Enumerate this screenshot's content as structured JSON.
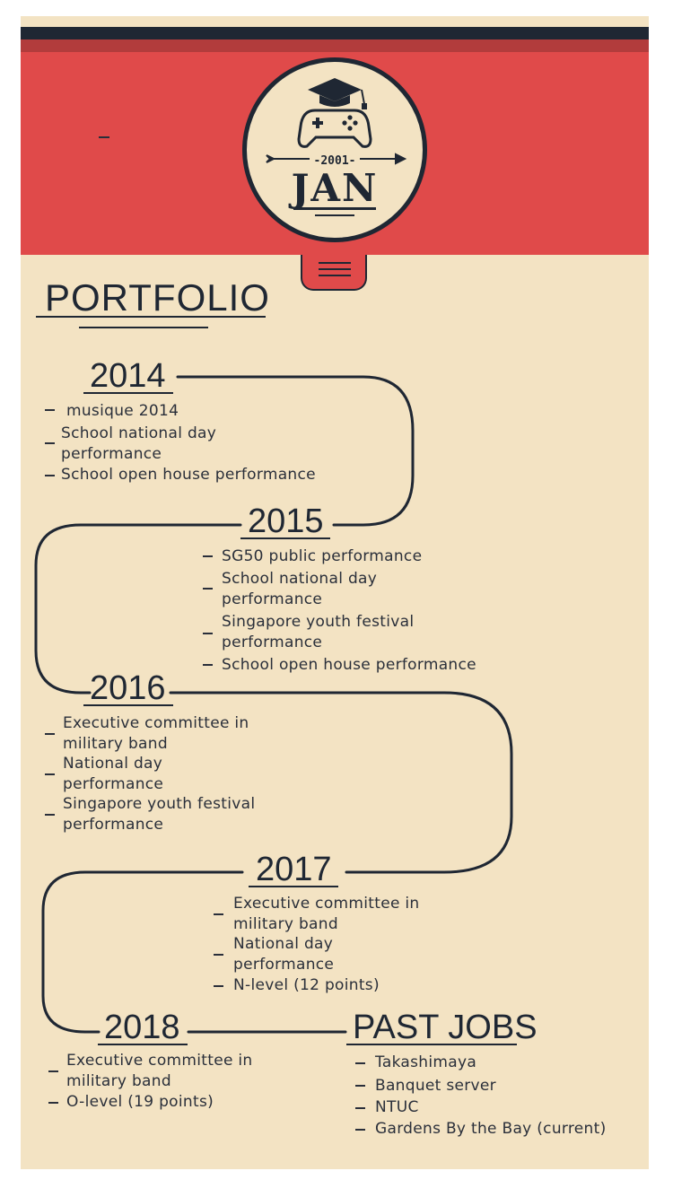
{
  "badge": {
    "year": "-2001-",
    "month": "JAN"
  },
  "portfolio_title": "PORTFOLIO",
  "years": [
    {
      "year": "2014",
      "items": [
        "musique 2014",
        "School national day performance",
        "School open house performance"
      ]
    },
    {
      "year": "2015",
      "items": [
        "SG50 public performance",
        "School national day performance",
        "Singapore youth festival performance",
        "School open house performance"
      ]
    },
    {
      "year": "2016",
      "items": [
        "Executive committee in military band",
        "National day performance",
        "Singapore youth festival performance"
      ]
    },
    {
      "year": "2017",
      "items": [
        "Executive committee in military band",
        "National day performance",
        "N-level (12 points)"
      ]
    },
    {
      "year": "2018",
      "items": [
        "Executive committee in military band",
        "O-level (19 points)"
      ]
    }
  ],
  "past_jobs": {
    "title": "PAST JOBS",
    "items": [
      "Takashimaya",
      "Banquet server",
      "NTUC",
      "Gardens By the Bay (current)"
    ]
  },
  "colors": {
    "red": "#e04a4a",
    "navy": "#1f2733",
    "cream": "#f3e3c3"
  },
  "icons": [
    "graduation-cap-icon",
    "gamepad-icon",
    "arrow-icon",
    "menu-icon"
  ]
}
